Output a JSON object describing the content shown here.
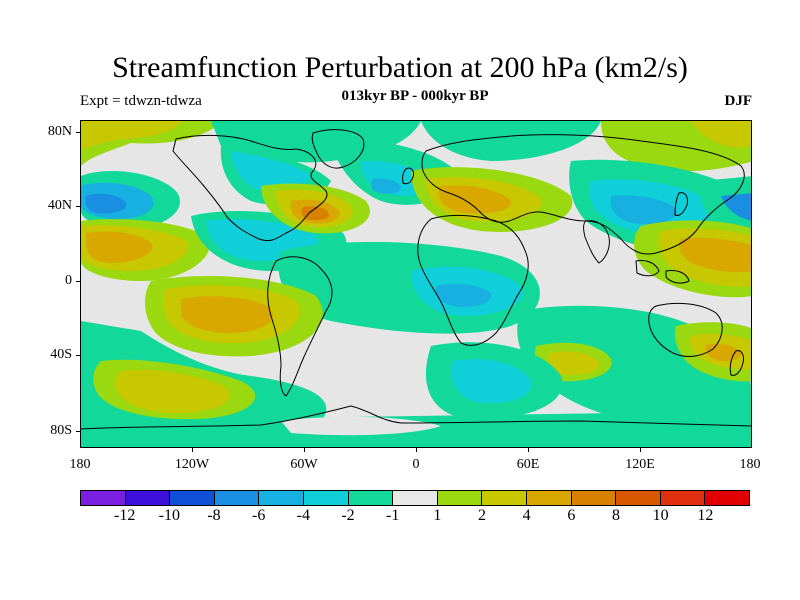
{
  "title": "Streamfunction Perturbation at 200 hPa (km2/s)",
  "subtitle": "013kyr BP - 000kyr BP",
  "experiment": "Expt = tdwzn-tdwza",
  "season": "DJF",
  "lat_labels": [
    "80N",
    "40N",
    "0",
    "40S",
    "80S"
  ],
  "lon_labels": [
    "180",
    "120W",
    "60W",
    "0",
    "60E",
    "120E",
    "180"
  ],
  "colorbar": {
    "colors": [
      "#7a1fe0",
      "#3c10d8",
      "#1050d8",
      "#1a8ee0",
      "#18b0e0",
      "#10cfd8",
      "#12d89a",
      "#e8e8e8",
      "#9ad810",
      "#c8c800",
      "#d8a800",
      "#d88000",
      "#d85800",
      "#e03010",
      "#e00000"
    ],
    "labels": [
      "-12",
      "-10",
      "-8",
      "-6",
      "-4",
      "-2",
      "-1",
      "1",
      "2",
      "4",
      "6",
      "8",
      "10",
      "12"
    ]
  },
  "palette": {
    "background": "#e6e6e6",
    "neg_light": "#12d89a",
    "neg_mid": "#10cfd8",
    "neg_strong": "#18b0e0",
    "neg_deep": "#1a8ee0",
    "pos_light": "#9ad810",
    "pos_mid": "#c8c800",
    "pos_strong": "#d8a800",
    "pos_deep": "#d88000"
  }
}
